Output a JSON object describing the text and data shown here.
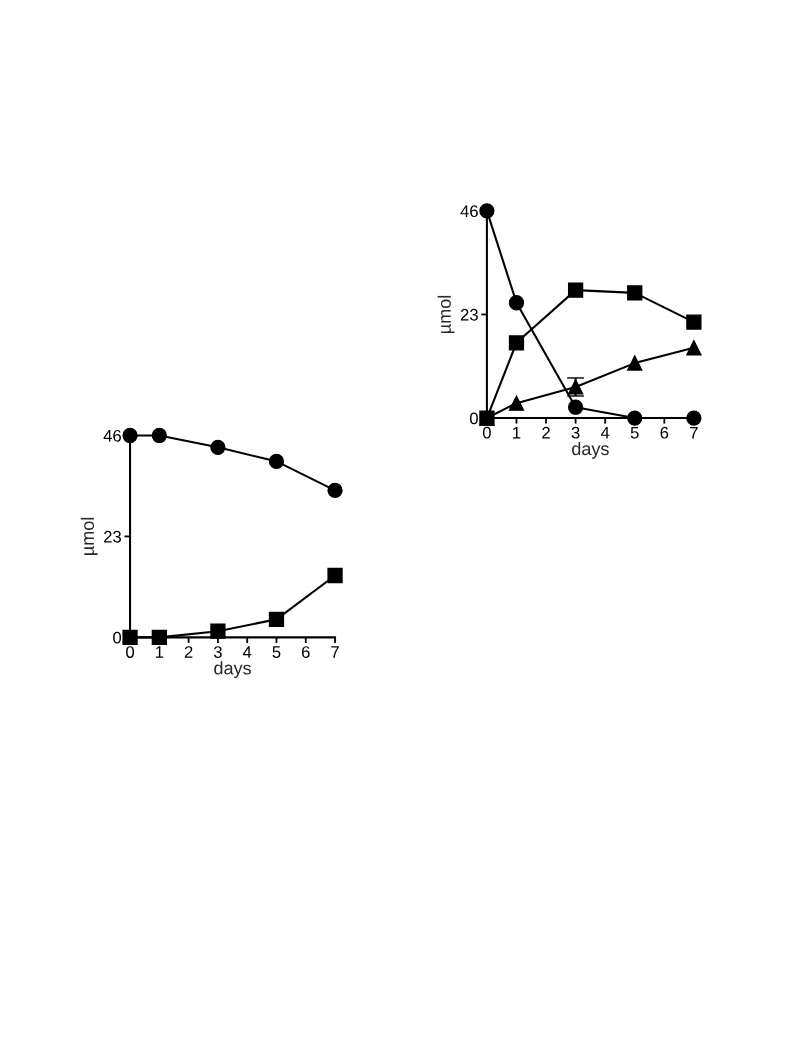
{
  "chart_data": [
    {
      "type": "line",
      "xlabel": "days",
      "ylabel": "µmol",
      "x": [
        0,
        1,
        3,
        5,
        7
      ],
      "xlim": [
        0,
        7
      ],
      "xticks": [
        0,
        1,
        2,
        3,
        4,
        5,
        6,
        7
      ],
      "ylim": [
        0,
        46
      ],
      "yticks": [
        0,
        23,
        46
      ],
      "grid": false,
      "line_style": "solid",
      "series": [
        {
          "color": "#000000",
          "marker": "circle",
          "values": [
            46,
            46,
            43.3,
            40.1,
            33.5
          ]
        },
        {
          "color": "#000000",
          "marker": "square",
          "values": [
            0,
            0,
            1.4,
            4.1,
            14.1
          ]
        }
      ]
    },
    {
      "type": "line",
      "xlabel": "days",
      "ylabel": "µmol",
      "x": [
        0,
        1,
        3,
        5,
        7
      ],
      "xlim": [
        0,
        7
      ],
      "xticks": [
        0,
        1,
        2,
        3,
        4,
        5,
        6,
        7
      ],
      "ylim": [
        0,
        46
      ],
      "yticks": [
        0,
        23,
        46
      ],
      "grid": false,
      "line_style": "solid",
      "series": [
        {
          "color": "#000000",
          "marker": "circle",
          "values": [
            46,
            25.6,
            2.4,
            0,
            0
          ]
        },
        {
          "color": "#000000",
          "marker": "square",
          "values": [
            0,
            16.7,
            28.4,
            27.8,
            21.3
          ]
        },
        {
          "color": "#000000",
          "marker": "triangle",
          "values": [
            0,
            3.3,
            6.9,
            12.2,
            15.6
          ],
          "errors": [
            null,
            null,
            2,
            null,
            null
          ]
        }
      ]
    }
  ]
}
